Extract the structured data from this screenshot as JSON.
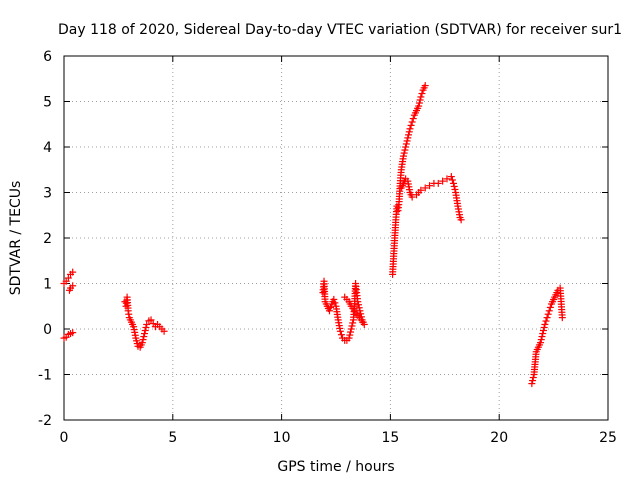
{
  "chart_data": {
    "type": "scatter",
    "title": "Day 118 of 2020, Sidereal Day-to-day VTEC variation (SDTVAR) for receiver sur1",
    "xlabel": "GPS time / hours",
    "ylabel": "SDTVAR / TECUs",
    "xlim": [
      0,
      25
    ],
    "ylim": [
      -2,
      6
    ],
    "xticks": [
      0,
      5,
      10,
      15,
      20,
      25
    ],
    "yticks": [
      -2,
      -1,
      0,
      1,
      2,
      3,
      4,
      5,
      6
    ],
    "grid": true,
    "marker": "+",
    "color": "#ff0000",
    "series": [
      {
        "name": "SDTVAR",
        "segments": [
          [
            [
              0.0,
              1.0
            ],
            [
              0.1,
              1.05
            ],
            [
              0.2,
              1.12
            ],
            [
              0.3,
              1.2
            ],
            [
              0.4,
              1.25
            ]
          ],
          [
            [
              0.25,
              0.85
            ],
            [
              0.3,
              0.9
            ],
            [
              0.4,
              0.95
            ]
          ],
          [
            [
              0.0,
              -0.2
            ],
            [
              0.1,
              -0.18
            ],
            [
              0.2,
              -0.12
            ],
            [
              0.3,
              -0.1
            ],
            [
              0.4,
              -0.08
            ]
          ],
          [
            [
              2.8,
              0.6
            ],
            [
              2.85,
              0.5
            ],
            [
              2.9,
              0.7
            ],
            [
              2.95,
              0.4
            ],
            [
              3.0,
              0.25
            ],
            [
              3.1,
              0.15
            ],
            [
              3.2,
              0.05
            ],
            [
              3.3,
              -0.2
            ],
            [
              3.4,
              -0.38
            ],
            [
              3.5,
              -0.4
            ],
            [
              3.6,
              -0.3
            ],
            [
              3.7,
              -0.1
            ],
            [
              3.8,
              0.1
            ],
            [
              3.9,
              0.18
            ],
            [
              4.0,
              0.2
            ],
            [
              4.1,
              0.12
            ],
            [
              4.2,
              0.05
            ],
            [
              4.3,
              0.1
            ],
            [
              4.4,
              0.05
            ],
            [
              4.5,
              0.0
            ],
            [
              4.6,
              -0.05
            ]
          ],
          [
            [
              11.9,
              0.8
            ],
            [
              11.95,
              1.05
            ],
            [
              12.0,
              0.6
            ],
            [
              12.1,
              0.5
            ],
            [
              12.2,
              0.4
            ],
            [
              12.3,
              0.55
            ],
            [
              12.4,
              0.65
            ],
            [
              12.5,
              0.5
            ],
            [
              12.6,
              0.2
            ],
            [
              12.7,
              -0.05
            ],
            [
              12.8,
              -0.2
            ],
            [
              12.9,
              -0.25
            ],
            [
              13.0,
              -0.25
            ],
            [
              13.1,
              -0.2
            ],
            [
              13.2,
              0.0
            ],
            [
              13.3,
              0.2
            ],
            [
              13.35,
              0.5
            ],
            [
              13.4,
              1.0
            ],
            [
              13.45,
              0.8
            ],
            [
              13.5,
              0.6
            ],
            [
              13.6,
              0.4
            ],
            [
              13.7,
              0.2
            ],
            [
              13.8,
              0.1
            ],
            [
              13.2,
              0.5
            ],
            [
              13.1,
              0.6
            ],
            [
              13.0,
              0.65
            ],
            [
              12.9,
              0.7
            ]
          ],
          [
            [
              15.1,
              1.2
            ],
            [
              15.15,
              1.6
            ],
            [
              15.2,
              2.0
            ],
            [
              15.25,
              2.4
            ],
            [
              15.3,
              2.7
            ],
            [
              15.35,
              2.6
            ],
            [
              15.4,
              2.8
            ],
            [
              15.45,
              3.2
            ],
            [
              15.5,
              3.5
            ],
            [
              15.6,
              3.8
            ],
            [
              15.7,
              4.0
            ],
            [
              15.8,
              4.2
            ],
            [
              15.9,
              4.4
            ],
            [
              16.0,
              4.55
            ],
            [
              16.1,
              4.7
            ],
            [
              16.2,
              4.8
            ],
            [
              16.3,
              4.9
            ],
            [
              16.4,
              5.1
            ],
            [
              16.5,
              5.25
            ],
            [
              16.6,
              5.35
            ]
          ],
          [
            [
              15.5,
              3.1
            ],
            [
              15.6,
              3.2
            ],
            [
              15.7,
              3.3
            ],
            [
              15.8,
              3.25
            ],
            [
              15.9,
              3.0
            ],
            [
              16.0,
              2.9
            ],
            [
              16.2,
              2.95
            ],
            [
              16.4,
              3.05
            ],
            [
              16.6,
              3.1
            ],
            [
              16.8,
              3.15
            ],
            [
              17.0,
              3.2
            ],
            [
              17.2,
              3.2
            ],
            [
              17.4,
              3.25
            ],
            [
              17.6,
              3.3
            ],
            [
              17.8,
              3.35
            ],
            [
              17.9,
              3.2
            ],
            [
              18.0,
              3.0
            ],
            [
              18.1,
              2.7
            ],
            [
              18.2,
              2.45
            ],
            [
              18.25,
              2.4
            ]
          ],
          [
            [
              21.5,
              -1.2
            ],
            [
              21.6,
              -1.0
            ],
            [
              21.7,
              -0.5
            ],
            [
              21.8,
              -0.4
            ],
            [
              21.9,
              -0.3
            ],
            [
              22.0,
              -0.1
            ],
            [
              22.1,
              0.1
            ],
            [
              22.2,
              0.25
            ],
            [
              22.3,
              0.4
            ],
            [
              22.4,
              0.55
            ],
            [
              22.5,
              0.65
            ],
            [
              22.6,
              0.75
            ],
            [
              22.7,
              0.85
            ],
            [
              22.8,
              0.9
            ],
            [
              22.9,
              0.25
            ]
          ]
        ]
      }
    ]
  }
}
